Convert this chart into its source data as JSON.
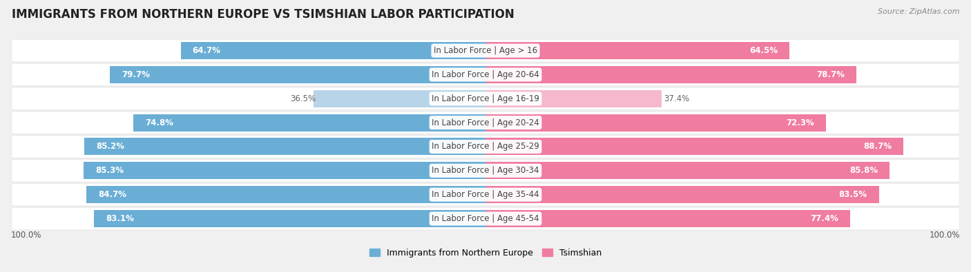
{
  "title": "IMMIGRANTS FROM NORTHERN EUROPE VS TSIMSHIAN LABOR PARTICIPATION",
  "source": "Source: ZipAtlas.com",
  "categories": [
    "In Labor Force | Age > 16",
    "In Labor Force | Age 20-64",
    "In Labor Force | Age 16-19",
    "In Labor Force | Age 20-24",
    "In Labor Force | Age 25-29",
    "In Labor Force | Age 30-34",
    "In Labor Force | Age 35-44",
    "In Labor Force | Age 45-54"
  ],
  "left_values": [
    64.7,
    79.7,
    36.5,
    74.8,
    85.2,
    85.3,
    84.7,
    83.1
  ],
  "right_values": [
    64.5,
    78.7,
    37.4,
    72.3,
    88.7,
    85.8,
    83.5,
    77.4
  ],
  "left_color": "#6aaed6",
  "right_color": "#f07ca0",
  "left_color_light": "#b8d4e8",
  "right_color_light": "#f5b8cc",
  "left_label": "Immigrants from Northern Europe",
  "right_label": "Tsimshian",
  "max_value": 100.0,
  "bg_color": "#f0f0f0",
  "row_bg": "#ffffff",
  "row_shadow": "#d0d0d0",
  "bar_height": 0.72,
  "title_fontsize": 12,
  "label_fontsize": 8.5,
  "value_fontsize": 8.5,
  "axis_label_fontsize": 8.5
}
